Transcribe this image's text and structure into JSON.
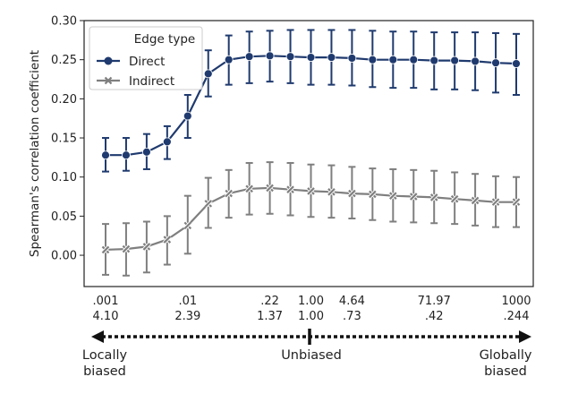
{
  "chart_data": {
    "type": "line",
    "ylabel": "Spearman's correlation coefficient",
    "ylim": [
      -0.04,
      0.3
    ],
    "yticks": [
      0.0,
      0.05,
      0.1,
      0.15,
      0.2,
      0.25,
      0.3
    ],
    "ytick_labels": [
      "0.00",
      "0.05",
      "0.10",
      "0.15",
      "0.20",
      "0.25",
      "0.30"
    ],
    "x_index": [
      0,
      1,
      2,
      3,
      4,
      5,
      6,
      7,
      8,
      9,
      10,
      11,
      12,
      13,
      14,
      15,
      16,
      17,
      18,
      19,
      20
    ],
    "xticks": [
      {
        "index": 0,
        "line1": ".001",
        "line2": "4.10"
      },
      {
        "index": 4,
        "line1": ".01",
        "line2": "2.39"
      },
      {
        "index": 8,
        "line1": ".22",
        "line2": "1.37"
      },
      {
        "index": 10,
        "line1": "1.00",
        "line2": "1.00"
      },
      {
        "index": 12,
        "line1": "4.64",
        "line2": ".73"
      },
      {
        "index": 16,
        "line1": "71.97",
        "line2": ".42"
      },
      {
        "index": 20,
        "line1": "1000",
        "line2": ".244"
      }
    ],
    "legend": {
      "title": "Edge type",
      "placement": "top-left"
    },
    "series": [
      {
        "name": "Direct",
        "color": "#1f3a6e",
        "marker": "circle",
        "values": [
          0.128,
          0.128,
          0.132,
          0.145,
          0.178,
          0.232,
          0.25,
          0.254,
          0.255,
          0.254,
          0.253,
          0.253,
          0.252,
          0.25,
          0.25,
          0.25,
          0.249,
          0.249,
          0.248,
          0.246,
          0.245
        ],
        "lower": [
          0.107,
          0.108,
          0.11,
          0.123,
          0.15,
          0.203,
          0.218,
          0.22,
          0.222,
          0.22,
          0.218,
          0.218,
          0.217,
          0.215,
          0.214,
          0.214,
          0.212,
          0.212,
          0.211,
          0.208,
          0.205
        ],
        "upper": [
          0.15,
          0.15,
          0.155,
          0.165,
          0.205,
          0.262,
          0.281,
          0.286,
          0.287,
          0.288,
          0.288,
          0.288,
          0.288,
          0.287,
          0.286,
          0.286,
          0.285,
          0.285,
          0.285,
          0.284,
          0.283
        ]
      },
      {
        "name": "Indirect",
        "color": "#7f7f7f",
        "marker": "x",
        "values": [
          0.007,
          0.008,
          0.011,
          0.02,
          0.038,
          0.066,
          0.079,
          0.085,
          0.086,
          0.084,
          0.082,
          0.081,
          0.079,
          0.078,
          0.076,
          0.075,
          0.074,
          0.072,
          0.07,
          0.068,
          0.068
        ],
        "lower": [
          -0.025,
          -0.026,
          -0.022,
          -0.012,
          0.002,
          0.035,
          0.048,
          0.052,
          0.053,
          0.051,
          0.049,
          0.048,
          0.047,
          0.045,
          0.043,
          0.042,
          0.041,
          0.04,
          0.038,
          0.036,
          0.036
        ],
        "upper": [
          0.04,
          0.041,
          0.043,
          0.05,
          0.076,
          0.099,
          0.109,
          0.118,
          0.119,
          0.118,
          0.116,
          0.115,
          0.113,
          0.111,
          0.11,
          0.109,
          0.108,
          0.106,
          0.104,
          0.101,
          0.1
        ]
      }
    ]
  },
  "bias_axis": {
    "left_label": "Locally\nbiased",
    "center_label": "Unbiased",
    "right_label": "Globally\nbiased"
  }
}
